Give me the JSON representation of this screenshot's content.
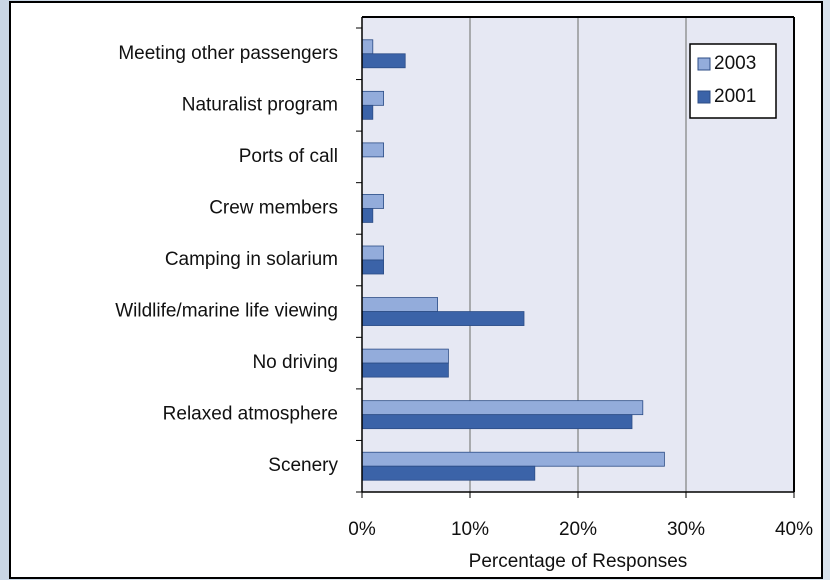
{
  "chart_data": {
    "type": "hbar",
    "categories": [
      "Meeting other passengers",
      "Naturalist program",
      "Ports of call",
      "Crew members",
      "Camping in solarium",
      "Wildlife/marine life viewing",
      "No driving",
      "Relaxed atmosphere",
      "Scenery"
    ],
    "series": [
      {
        "name": "2003",
        "color": "#93acdb",
        "values": [
          1,
          2,
          2,
          2,
          2,
          7,
          8,
          26,
          28
        ]
      },
      {
        "name": "2001",
        "color": "#3b63a8",
        "values": [
          4,
          1,
          0,
          1,
          2,
          15,
          8,
          25,
          16
        ]
      }
    ],
    "xlim": [
      0,
      40
    ],
    "xticks": [
      {
        "value": 0,
        "label": "0%"
      },
      {
        "value": 10,
        "label": "10%"
      },
      {
        "value": 20,
        "label": "20%"
      },
      {
        "value": 30,
        "label": "30%"
      },
      {
        "value": 40,
        "label": "40%"
      }
    ],
    "xlabel": "Percentage of Responses",
    "grid": true,
    "legend": "top-right"
  }
}
